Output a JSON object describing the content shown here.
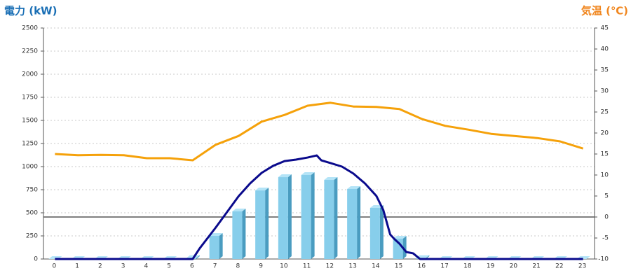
{
  "chart_data": {
    "type": "bar",
    "title_left": "電力 (kW)",
    "title_right": "気温 (℃)",
    "title_left_color": "#1a6fb5",
    "title_right_color": "#f0861e",
    "categories": [
      "0",
      "1",
      "2",
      "3",
      "4",
      "5",
      "6",
      "7",
      "8",
      "9",
      "10",
      "11",
      "12",
      "13",
      "14",
      "15",
      "16",
      "17",
      "18",
      "19",
      "20",
      "21",
      "22",
      "23"
    ],
    "ylim": [
      0,
      2500
    ],
    "yticks": [
      0,
      250,
      500,
      750,
      1000,
      1250,
      1500,
      1750,
      2000,
      2250,
      2500
    ],
    "y2lim": [
      -10,
      45
    ],
    "y2ticks": [
      -10,
      -5,
      0,
      5,
      10,
      15,
      20,
      25,
      30,
      35,
      40,
      45
    ],
    "grid": true,
    "series": [
      {
        "type": "bar",
        "color": "#87ceeb",
        "values": [
          0,
          0,
          0,
          0,
          0,
          0,
          10,
          250,
          515,
          742,
          886,
          909,
          856,
          758,
          553,
          220,
          10,
          0,
          0,
          0,
          0,
          0,
          0,
          0
        ]
      },
      {
        "type": "line",
        "color": "#0a0a8c",
        "x": [
          0,
          6,
          6.3,
          7,
          8,
          8.5,
          9,
          9.5,
          10,
          10.5,
          11,
          11.4,
          11.6,
          12,
          12.5,
          13,
          13.5,
          14,
          14.3,
          14.6,
          14.8,
          15,
          15.3,
          15.6,
          15.9,
          23
        ],
        "values": [
          0,
          0,
          114,
          340,
          680,
          818,
          932,
          1008,
          1060,
          1076,
          1098,
          1121,
          1068,
          1038,
          1000,
          924,
          818,
          682,
          530,
          265,
          212,
          167,
          76,
          61,
          0,
          0
        ]
      },
      {
        "type": "line",
        "axis": "y2",
        "color": "#f5a10a",
        "values": [
          15,
          14.7,
          14.8,
          14.7,
          14,
          14,
          13.5,
          17.2,
          19.3,
          22.7,
          24.3,
          26.5,
          27.2,
          26.3,
          26.2,
          25.7,
          23.3,
          21.7,
          20.8,
          19.8,
          19.3,
          18.8,
          18,
          16.3
        ]
      }
    ]
  }
}
